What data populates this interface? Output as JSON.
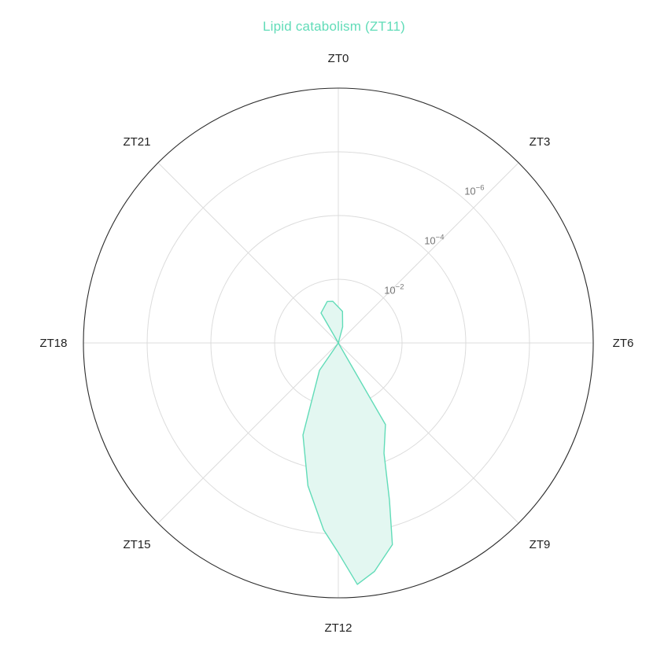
{
  "chart_data": {
    "type": "radar",
    "title": "Lipid catabolism (ZT11)",
    "angular_axis": {
      "labels": [
        "ZT0",
        "ZT3",
        "ZT6",
        "ZT9",
        "ZT12",
        "ZT15",
        "ZT18",
        "ZT21"
      ],
      "hours": [
        0,
        3,
        6,
        9,
        12,
        15,
        18,
        21
      ],
      "period_hours": 24,
      "direction": "clockwise",
      "zero_at": "top"
    },
    "radial_axis": {
      "scale": "log-reversed",
      "quantity": "p-value",
      "center_value": 1,
      "outer_value": 1e-08,
      "tick_values": [
        0.01,
        0.0001,
        1e-06
      ],
      "tick_labels": [
        {
          "base": "10",
          "exp": "−2"
        },
        {
          "base": "10",
          "exp": "−4"
        },
        {
          "base": "10",
          "exp": "−6"
        }
      ],
      "grid": true
    },
    "series": [
      {
        "color": "#61dcb8",
        "fill_color": "#e3f7f1",
        "points": [
          {
            "hour": 0.0,
            "value": 1
          },
          {
            "hour": 10.0,
            "value": 0.0011
          },
          {
            "hour": 10.5,
            "value": 0.00018
          },
          {
            "hour": 10.8,
            "value": 6.4e-06
          },
          {
            "hour": 11.0,
            "value": 2.8e-07
          },
          {
            "hour": 11.4,
            "value": 5.5e-08
          },
          {
            "hour": 11.7,
            "value": 2.5e-08
          },
          {
            "hour": 12.0,
            "value": 2.6e-07
          },
          {
            "hour": 12.3,
            "value": 1.3e-06
          },
          {
            "hour": 12.8,
            "value": 2.6e-05
          },
          {
            "hour": 13.4,
            "value": 0.0008
          },
          {
            "hour": 14.3,
            "value": 0.09
          },
          {
            "hour": 15.0,
            "value": 1
          },
          {
            "hour": 20.0,
            "value": 1
          },
          {
            "hour": 22.0,
            "value": 0.082
          },
          {
            "hour": 23.0,
            "value": 0.045
          },
          {
            "hour": 23.5,
            "value": 0.048
          },
          {
            "hour": 0.5,
            "value": 0.1
          },
          {
            "hour": 1.0,
            "value": 0.3
          }
        ]
      }
    ]
  }
}
